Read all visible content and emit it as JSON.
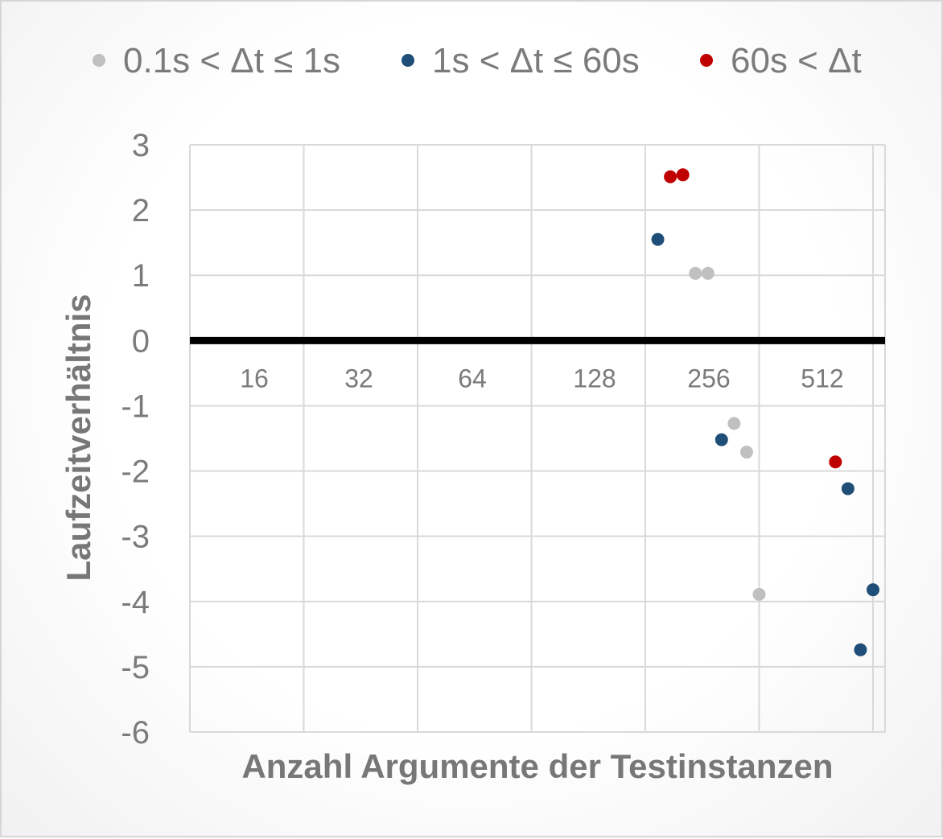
{
  "chart_data": {
    "type": "scatter",
    "xlabel": "Anzahl Argumente der Testinstanzen",
    "ylabel": "Laufzeitverhältnis",
    "ylim": [
      -6,
      3
    ],
    "yticks": [
      "3",
      "2",
      "1",
      "0",
      "-1",
      "-2",
      "-3",
      "-4",
      "-5",
      "-6"
    ],
    "xlim": [
      0,
      6.1
    ],
    "x_category_labels": [
      "16",
      "32",
      "64",
      "128",
      "256",
      "512"
    ],
    "grid": true,
    "legend_position": "top",
    "series": [
      {
        "name": "0.1s < Δt ≤ 1s",
        "color": "#c0c0c0",
        "points": [
          {
            "x": 4.44,
            "y": 1.03
          },
          {
            "x": 4.55,
            "y": 1.03
          },
          {
            "x": 4.78,
            "y": -1.27
          },
          {
            "x": 4.89,
            "y": -1.71
          },
          {
            "x": 5.0,
            "y": -3.89
          }
        ]
      },
      {
        "name": "1s < Δt ≤ 60s",
        "color": "#1f4e79",
        "points": [
          {
            "x": 4.11,
            "y": 1.55
          },
          {
            "x": 4.67,
            "y": -1.52
          },
          {
            "x": 5.78,
            "y": -2.27
          },
          {
            "x": 5.89,
            "y": -4.74
          },
          {
            "x": 6.0,
            "y": -3.82
          }
        ]
      },
      {
        "name": "60s < Δt",
        "color": "#c00000",
        "points": [
          {
            "x": 4.22,
            "y": 2.51
          },
          {
            "x": 4.33,
            "y": 2.54
          },
          {
            "x": 5.67,
            "y": -1.86
          }
        ]
      }
    ]
  }
}
